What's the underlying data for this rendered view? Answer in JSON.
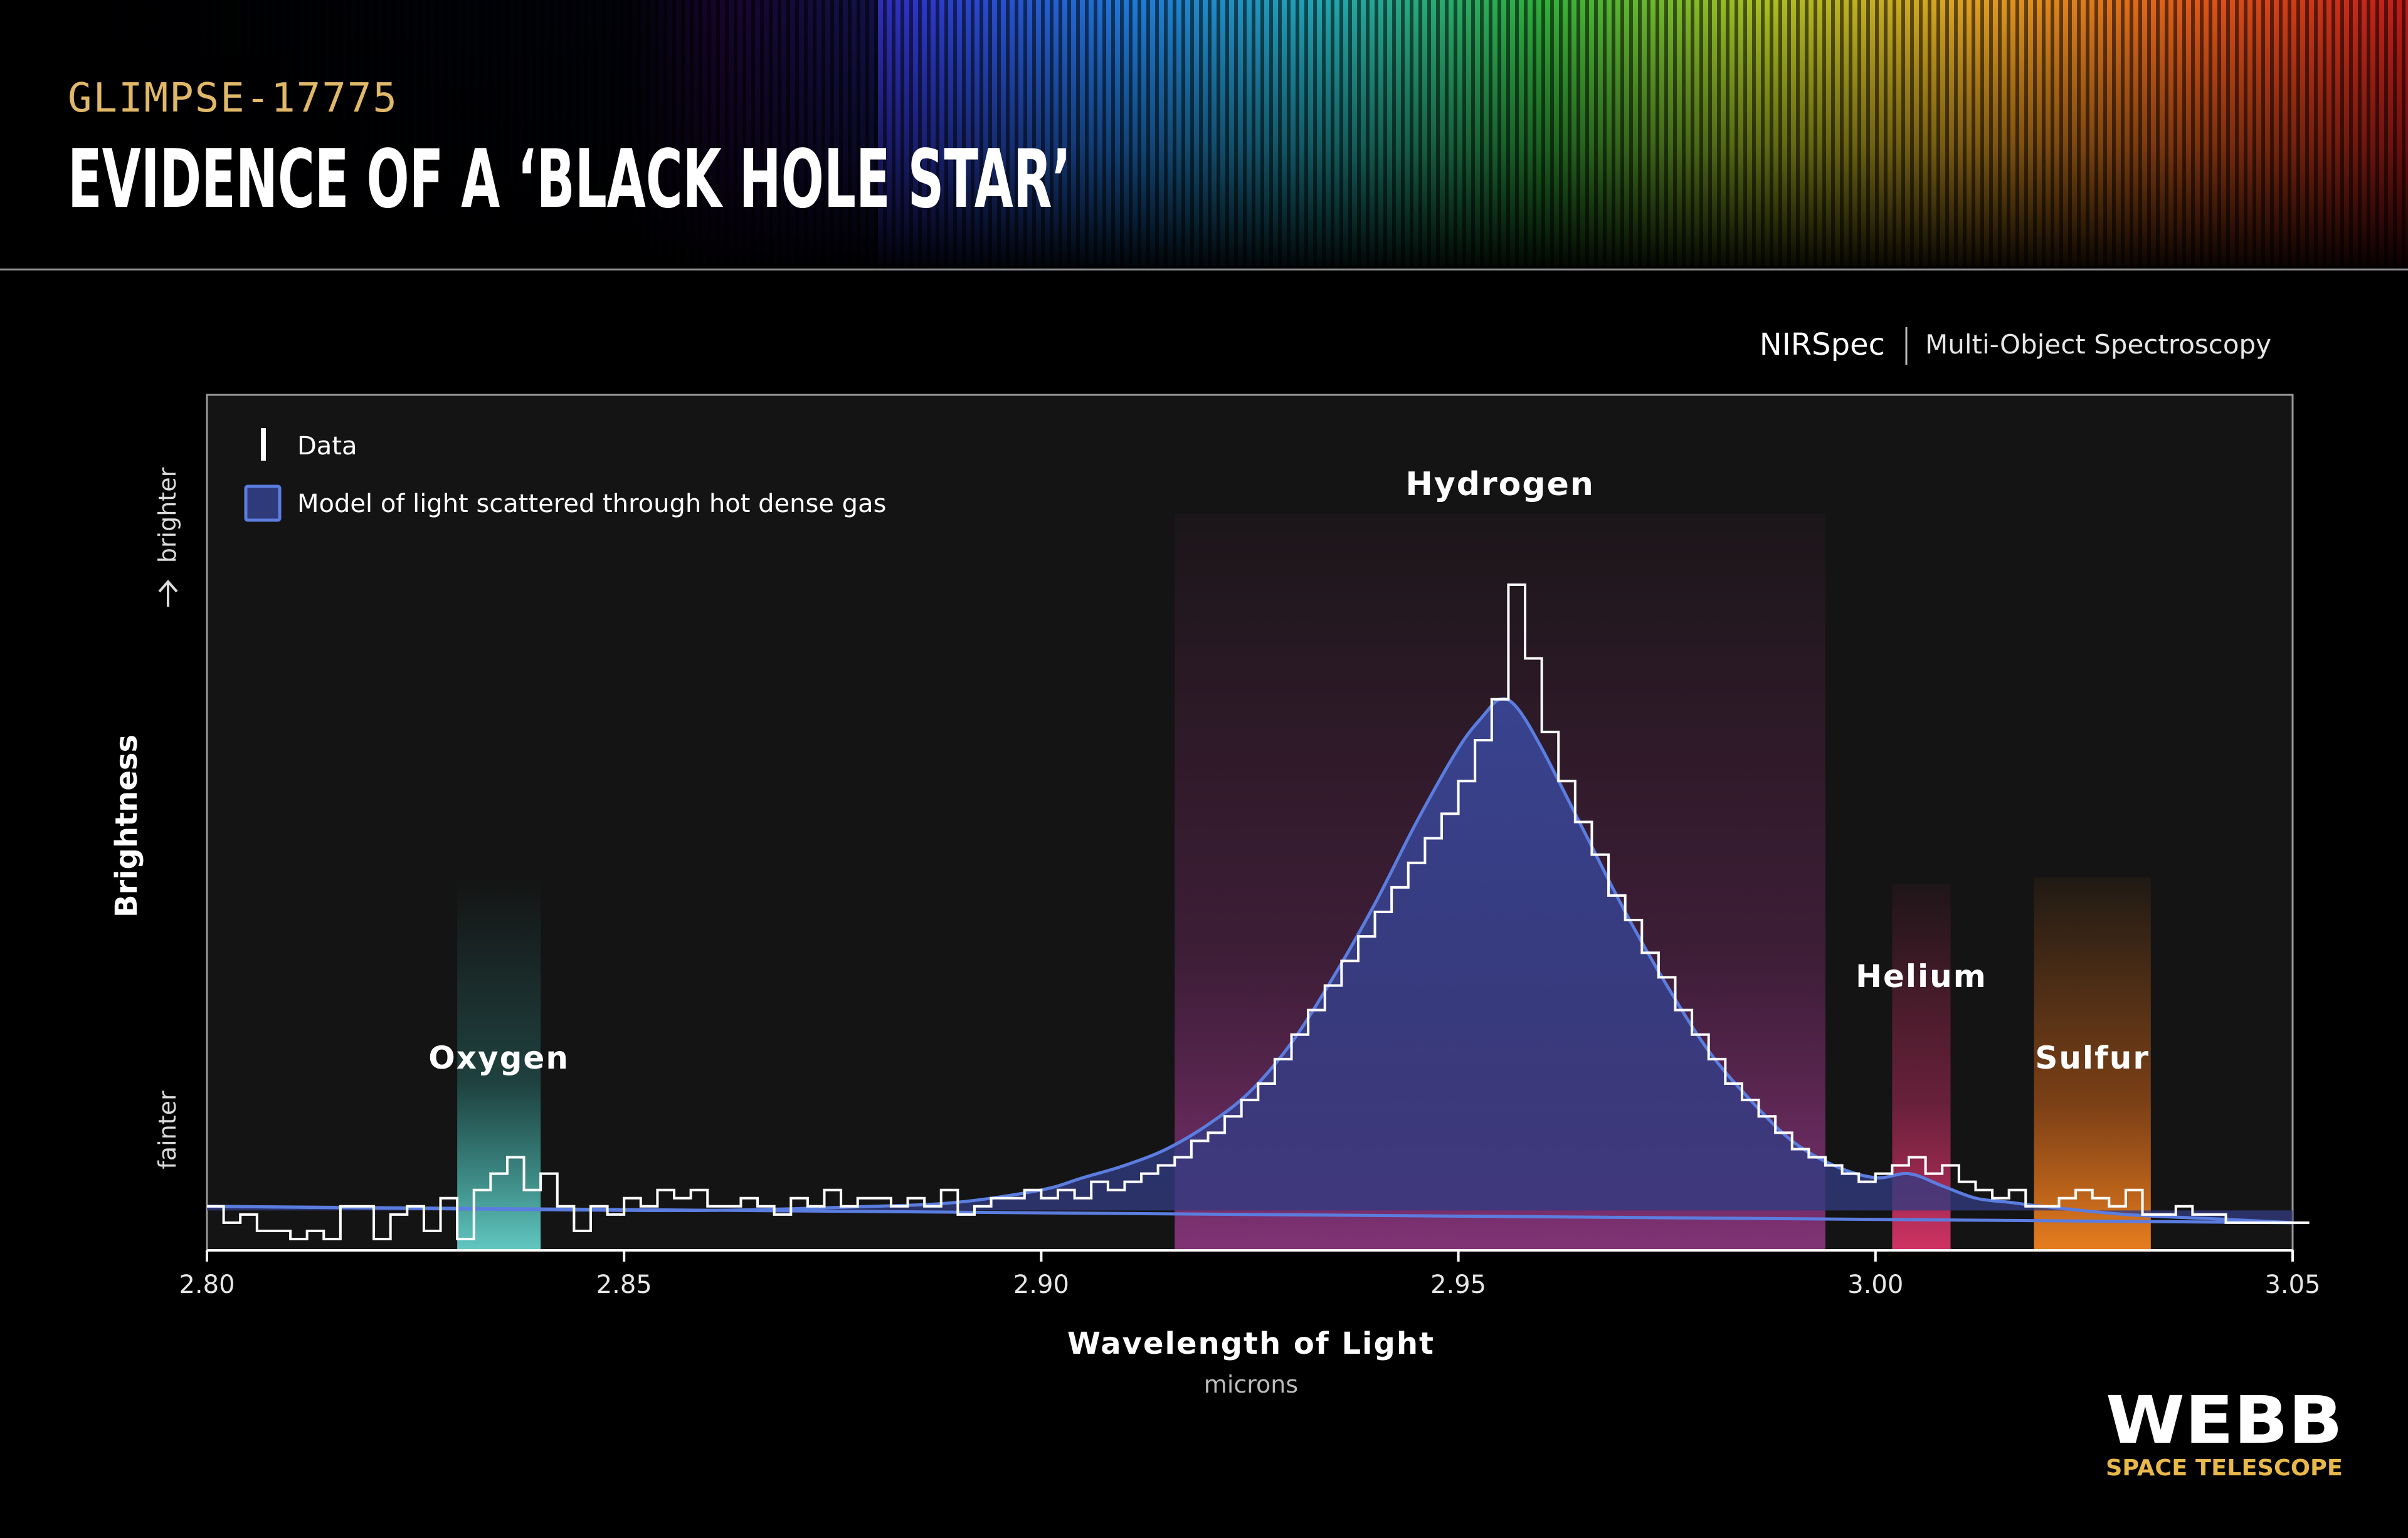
{
  "header": {
    "eyebrow": "GLIMPSE-17775",
    "title": "EVIDENCE OF A ‘BLACK HOLE STAR’"
  },
  "instrument": {
    "name": "NIRSpec",
    "mode": "Multi-Object Spectroscopy"
  },
  "brand": {
    "logo_text": "WEBB",
    "tagline": "SPACE TELESCOPE",
    "accent_color": "#e8b84a"
  },
  "colors": {
    "background": "#000000",
    "plot_bg": "#141414",
    "data_line": "#ffffff",
    "model_line": "#5b7de0",
    "model_fill": "#2e3a7a",
    "eyebrow": "#e0b868"
  },
  "chart_data": {
    "type": "line",
    "xlabel": "Wavelength of Light",
    "xunit": "microns",
    "ylabel": "Brightness",
    "y_low_label": "fainter",
    "y_high_label": "brighter",
    "xlim": [
      2.8,
      3.05
    ],
    "ylim": [
      0,
      1.0
    ],
    "xticks": [
      "2.80",
      "2.85",
      "2.90",
      "2.95",
      "3.00",
      "3.05"
    ],
    "grid": false,
    "legend_placement": "top-left",
    "legend": [
      {
        "label": "Data",
        "kind": "line"
      },
      {
        "label": "Model of light scattered through hot dense gas",
        "kind": "fill"
      }
    ],
    "bands": [
      {
        "name": "Oxygen",
        "x_range": [
          2.83,
          2.84
        ],
        "color": "#3fc9c0"
      },
      {
        "name": "Hydrogen",
        "x_range": [
          2.916,
          2.994
        ],
        "color": "#a0357a"
      },
      {
        "name": "Helium",
        "x_range": [
          3.002,
          3.009
        ],
        "color": "#e0306a"
      },
      {
        "name": "Sulfur",
        "x_range": [
          3.019,
          3.033
        ],
        "color": "#f07a1a"
      }
    ],
    "series": [
      {
        "name": "Data",
        "style": "step",
        "x": [
          2.8,
          2.802,
          2.804,
          2.806,
          2.808,
          2.81,
          2.812,
          2.814,
          2.816,
          2.818,
          2.82,
          2.822,
          2.824,
          2.826,
          2.828,
          2.83,
          2.832,
          2.834,
          2.836,
          2.838,
          2.84,
          2.842,
          2.844,
          2.846,
          2.848,
          2.85,
          2.852,
          2.854,
          2.856,
          2.858,
          2.86,
          2.862,
          2.864,
          2.866,
          2.868,
          2.87,
          2.872,
          2.874,
          2.876,
          2.878,
          2.88,
          2.882,
          2.884,
          2.886,
          2.888,
          2.89,
          2.892,
          2.894,
          2.896,
          2.898,
          2.9,
          2.902,
          2.904,
          2.906,
          2.908,
          2.91,
          2.912,
          2.914,
          2.916,
          2.918,
          2.92,
          2.922,
          2.924,
          2.926,
          2.928,
          2.93,
          2.932,
          2.934,
          2.936,
          2.938,
          2.94,
          2.942,
          2.944,
          2.946,
          2.948,
          2.95,
          2.952,
          2.954,
          2.956,
          2.958,
          2.96,
          2.962,
          2.964,
          2.966,
          2.968,
          2.97,
          2.972,
          2.974,
          2.976,
          2.978,
          2.98,
          2.982,
          2.984,
          2.986,
          2.988,
          2.99,
          2.992,
          2.994,
          2.996,
          2.998,
          3.0,
          3.002,
          3.004,
          3.006,
          3.008,
          3.01,
          3.012,
          3.014,
          3.016,
          3.018,
          3.02,
          3.022,
          3.024,
          3.026,
          3.028,
          3.03,
          3.032,
          3.034,
          3.036,
          3.038,
          3.04,
          3.042,
          3.044,
          3.046,
          3.048,
          3.05
        ],
        "y": [
          0.04,
          0.02,
          0.03,
          0.01,
          0.01,
          0.0,
          0.01,
          0.0,
          0.04,
          0.04,
          0.0,
          0.03,
          0.04,
          0.01,
          0.05,
          0.0,
          0.06,
          0.08,
          0.1,
          0.06,
          0.08,
          0.04,
          0.01,
          0.04,
          0.03,
          0.05,
          0.04,
          0.06,
          0.05,
          0.06,
          0.04,
          0.04,
          0.05,
          0.04,
          0.03,
          0.05,
          0.04,
          0.06,
          0.04,
          0.05,
          0.05,
          0.04,
          0.05,
          0.04,
          0.06,
          0.03,
          0.04,
          0.05,
          0.05,
          0.06,
          0.05,
          0.06,
          0.05,
          0.07,
          0.06,
          0.07,
          0.08,
          0.09,
          0.1,
          0.12,
          0.13,
          0.15,
          0.17,
          0.19,
          0.22,
          0.25,
          0.28,
          0.31,
          0.34,
          0.37,
          0.4,
          0.43,
          0.46,
          0.49,
          0.52,
          0.56,
          0.61,
          0.66,
          0.8,
          0.71,
          0.62,
          0.56,
          0.51,
          0.47,
          0.42,
          0.39,
          0.35,
          0.32,
          0.28,
          0.25,
          0.22,
          0.19,
          0.17,
          0.15,
          0.13,
          0.11,
          0.1,
          0.09,
          0.08,
          0.07,
          0.08,
          0.09,
          0.1,
          0.08,
          0.09,
          0.07,
          0.06,
          0.05,
          0.06,
          0.04,
          0.04,
          0.05,
          0.06,
          0.05,
          0.04,
          0.06,
          0.03,
          0.03,
          0.04,
          0.03,
          0.03,
          0.02,
          0.02,
          0.02,
          0.02,
          0.02
        ]
      },
      {
        "name": "Model of light scattered through hot dense gas",
        "style": "smooth",
        "x": [
          2.8,
          2.82,
          2.84,
          2.86,
          2.88,
          2.89,
          2.9,
          2.905,
          2.91,
          2.915,
          2.92,
          2.925,
          2.93,
          2.935,
          2.94,
          2.945,
          2.95,
          2.953,
          2.955,
          2.957,
          2.96,
          2.965,
          2.97,
          2.975,
          2.98,
          2.985,
          2.99,
          2.995,
          3.0,
          3.004,
          3.008,
          3.012,
          3.016,
          3.02,
          3.03,
          3.04,
          3.05
        ],
        "y": [
          0.04,
          0.038,
          0.036,
          0.035,
          0.04,
          0.045,
          0.06,
          0.075,
          0.09,
          0.11,
          0.14,
          0.18,
          0.24,
          0.32,
          0.41,
          0.51,
          0.6,
          0.64,
          0.66,
          0.65,
          0.6,
          0.5,
          0.4,
          0.31,
          0.23,
          0.17,
          0.12,
          0.09,
          0.075,
          0.08,
          0.065,
          0.05,
          0.045,
          0.04,
          0.03,
          0.025,
          0.02
        ]
      }
    ]
  }
}
